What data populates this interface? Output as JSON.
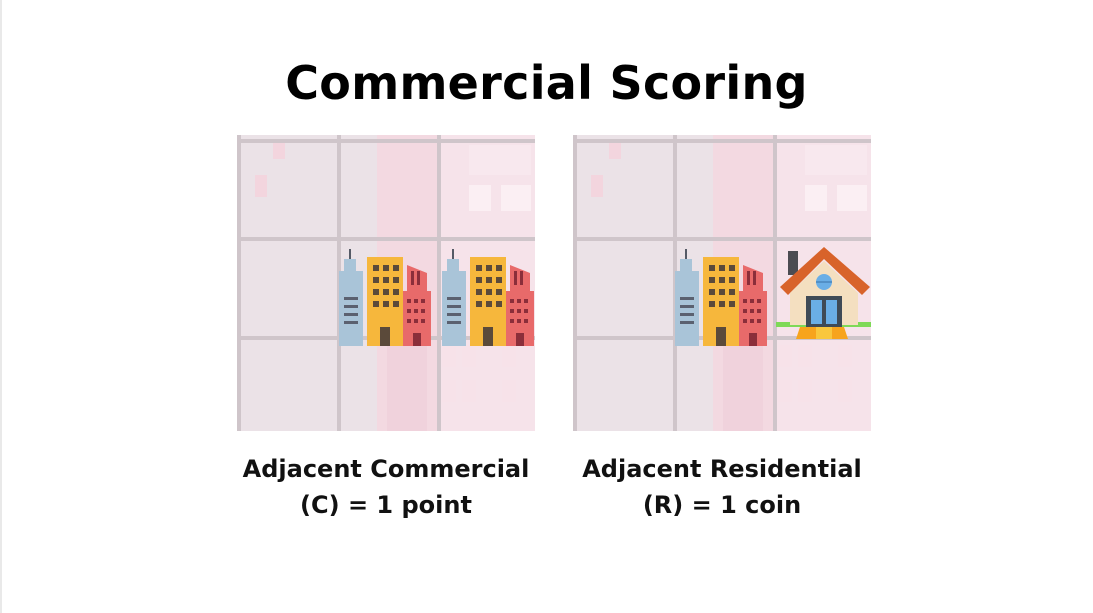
{
  "slide": {
    "title": "Commercial Scoring"
  },
  "panels": [
    {
      "caption_line1": "Adjacent Commercial",
      "caption_line2": "(C) = 1 point",
      "tiles": [
        "commercial-icon",
        "commercial-icon"
      ]
    },
    {
      "caption_line1": "Adjacent Residential",
      "caption_line2": "(R) = 1 coin",
      "tiles": [
        "commercial-icon",
        "residential-house-icon"
      ]
    }
  ],
  "colors": {
    "grid_background": "#ece4e8",
    "grid_lines": "#cfc6cb",
    "building_yellow": "#f6b73c",
    "building_red": "#e86a6a",
    "building_blue": "#a9c4d8",
    "house_roof": "#d8632a",
    "house_wall": "#f4dfc0"
  }
}
